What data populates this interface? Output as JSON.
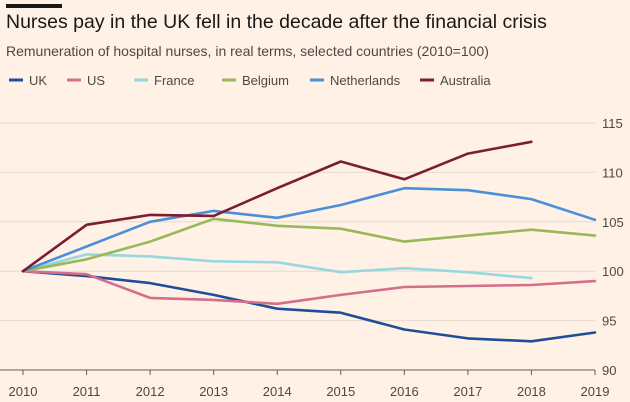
{
  "header": {
    "title": "Nurses pay in the UK fell in the decade after the financial crisis",
    "subtitle": "Remuneration of hospital nurses, in real terms, selected countries (2010=100)"
  },
  "colors": {
    "background": "#fff1e5",
    "grid": "#e6d9ce",
    "axis": "#66605c"
  },
  "chart_data": {
    "type": "line",
    "title": "Nurses pay in the UK fell in the decade after the financial crisis",
    "subtitle": "Remuneration of hospital nurses, in real terms, selected countries (2010=100)",
    "x": [
      2010,
      2011,
      2012,
      2013,
      2014,
      2015,
      2016,
      2017,
      2018,
      2019
    ],
    "xlim": [
      2010,
      2019
    ],
    "ylim": [
      90,
      115
    ],
    "yticks": [
      90,
      95,
      100,
      105,
      110,
      115
    ],
    "grid": true,
    "legend_position": "top",
    "series": [
      {
        "name": "UK",
        "color": "#1f4e99",
        "values": [
          100,
          99.5,
          98.8,
          97.6,
          96.2,
          95.8,
          94.1,
          93.2,
          92.9,
          93.8
        ]
      },
      {
        "name": "US",
        "color": "#d46e8c",
        "values": [
          100,
          99.7,
          97.3,
          97.1,
          96.7,
          97.6,
          98.4,
          98.5,
          98.6,
          99.0
        ]
      },
      {
        "name": "France",
        "color": "#96d7e0",
        "values": [
          100,
          101.7,
          101.5,
          101.0,
          100.9,
          99.9,
          100.3,
          99.9,
          99.3,
          null
        ]
      },
      {
        "name": "Belgium",
        "color": "#98b85a",
        "values": [
          100,
          101.2,
          103.0,
          105.3,
          104.6,
          104.3,
          103.0,
          103.6,
          104.2,
          103.6
        ]
      },
      {
        "name": "Netherlands",
        "color": "#4a90d9",
        "values": [
          100,
          102.5,
          105.0,
          106.1,
          105.4,
          106.7,
          108.4,
          108.2,
          107.3,
          105.2
        ]
      },
      {
        "name": "Australia",
        "color": "#7a1e33",
        "values": [
          100,
          104.7,
          105.7,
          105.6,
          108.4,
          111.1,
          109.3,
          111.9,
          113.1,
          null
        ]
      }
    ]
  }
}
